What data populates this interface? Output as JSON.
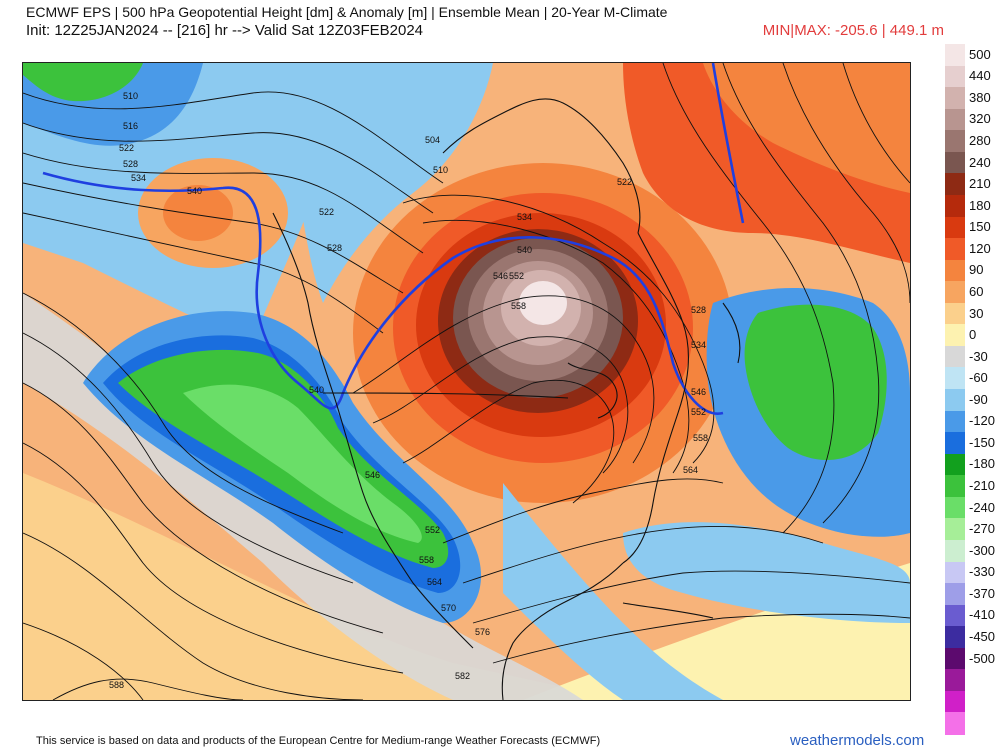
{
  "header": {
    "line1": "ECMWF EPS | 500 hPa Geopotential Height [dm] & Anomaly [m] | Ensemble Mean | 20-Year M-Climate",
    "line2": "Init: 12Z25JAN2024 -- [216] hr --> Valid Sat 12Z03FEB2024",
    "minmax": "MIN|MAX: -205.6 | 449.1 m"
  },
  "colorbar": {
    "levels": [
      {
        "label": "500",
        "color": "#f4e6e6"
      },
      {
        "label": "440",
        "color": "#e6cfcf"
      },
      {
        "label": "380",
        "color": "#d2b2ae"
      },
      {
        "label": "320",
        "color": "#b89590"
      },
      {
        "label": "280",
        "color": "#9a7670"
      },
      {
        "label": "240",
        "color": "#7a5650"
      },
      {
        "label": "210",
        "color": "#8e2a14"
      },
      {
        "label": "180",
        "color": "#b52a0c"
      },
      {
        "label": "150",
        "color": "#d93a10"
      },
      {
        "label": "120",
        "color": "#f05a28"
      },
      {
        "label": "90",
        "color": "#f4843e"
      },
      {
        "label": "60",
        "color": "#f7a560"
      },
      {
        "label": "30",
        "color": "#fbd08c"
      },
      {
        "label": "0",
        "color": "#fdf2b0"
      },
      {
        "label": "-30",
        "color": "#d8d8d8"
      },
      {
        "label": "-60",
        "color": "#bfe4f4"
      },
      {
        "label": "-90",
        "color": "#8ccaf0"
      },
      {
        "label": "-120",
        "color": "#4a9ae8"
      },
      {
        "label": "-150",
        "color": "#1a6ede"
      },
      {
        "label": "-180",
        "color": "#12a01e"
      },
      {
        "label": "-210",
        "color": "#3cc23c"
      },
      {
        "label": "-240",
        "color": "#6ade68"
      },
      {
        "label": "-270",
        "color": "#a6ee98"
      },
      {
        "label": "-300",
        "color": "#cceed0"
      },
      {
        "label": "-330",
        "color": "#c8c8f4"
      },
      {
        "label": "-370",
        "color": "#9e9ee8"
      },
      {
        "label": "-410",
        "color": "#6a5cd0"
      },
      {
        "label": "-450",
        "color": "#3c2ca0"
      },
      {
        "label": "-500",
        "color": "#5c0a6e"
      },
      {
        "label": "",
        "color": "#9a1a9a"
      },
      {
        "label": "",
        "color": "#d020c8"
      },
      {
        "label": "",
        "color": "#f470e8"
      }
    ]
  },
  "contour_labels": [
    "510",
    "516",
    "522",
    "528",
    "534",
    "540",
    "504",
    "510",
    "522",
    "528",
    "534",
    "540",
    "546",
    "552",
    "558",
    "540",
    "546",
    "552",
    "558",
    "564",
    "546",
    "552",
    "558",
    "564",
    "570",
    "576",
    "582",
    "588",
    "522",
    "528",
    "534"
  ],
  "footer": {
    "disclaimer": "This service is based on data and products of the European Centre for Medium-range Weather Forecasts (ECMWF)",
    "brand": "weathermodels.com"
  },
  "colors": {
    "ridge_center": "#f3e6e3",
    "trough_green": "#3cc23c",
    "contour": "#111111",
    "contour_540": "#1f3fe0"
  }
}
